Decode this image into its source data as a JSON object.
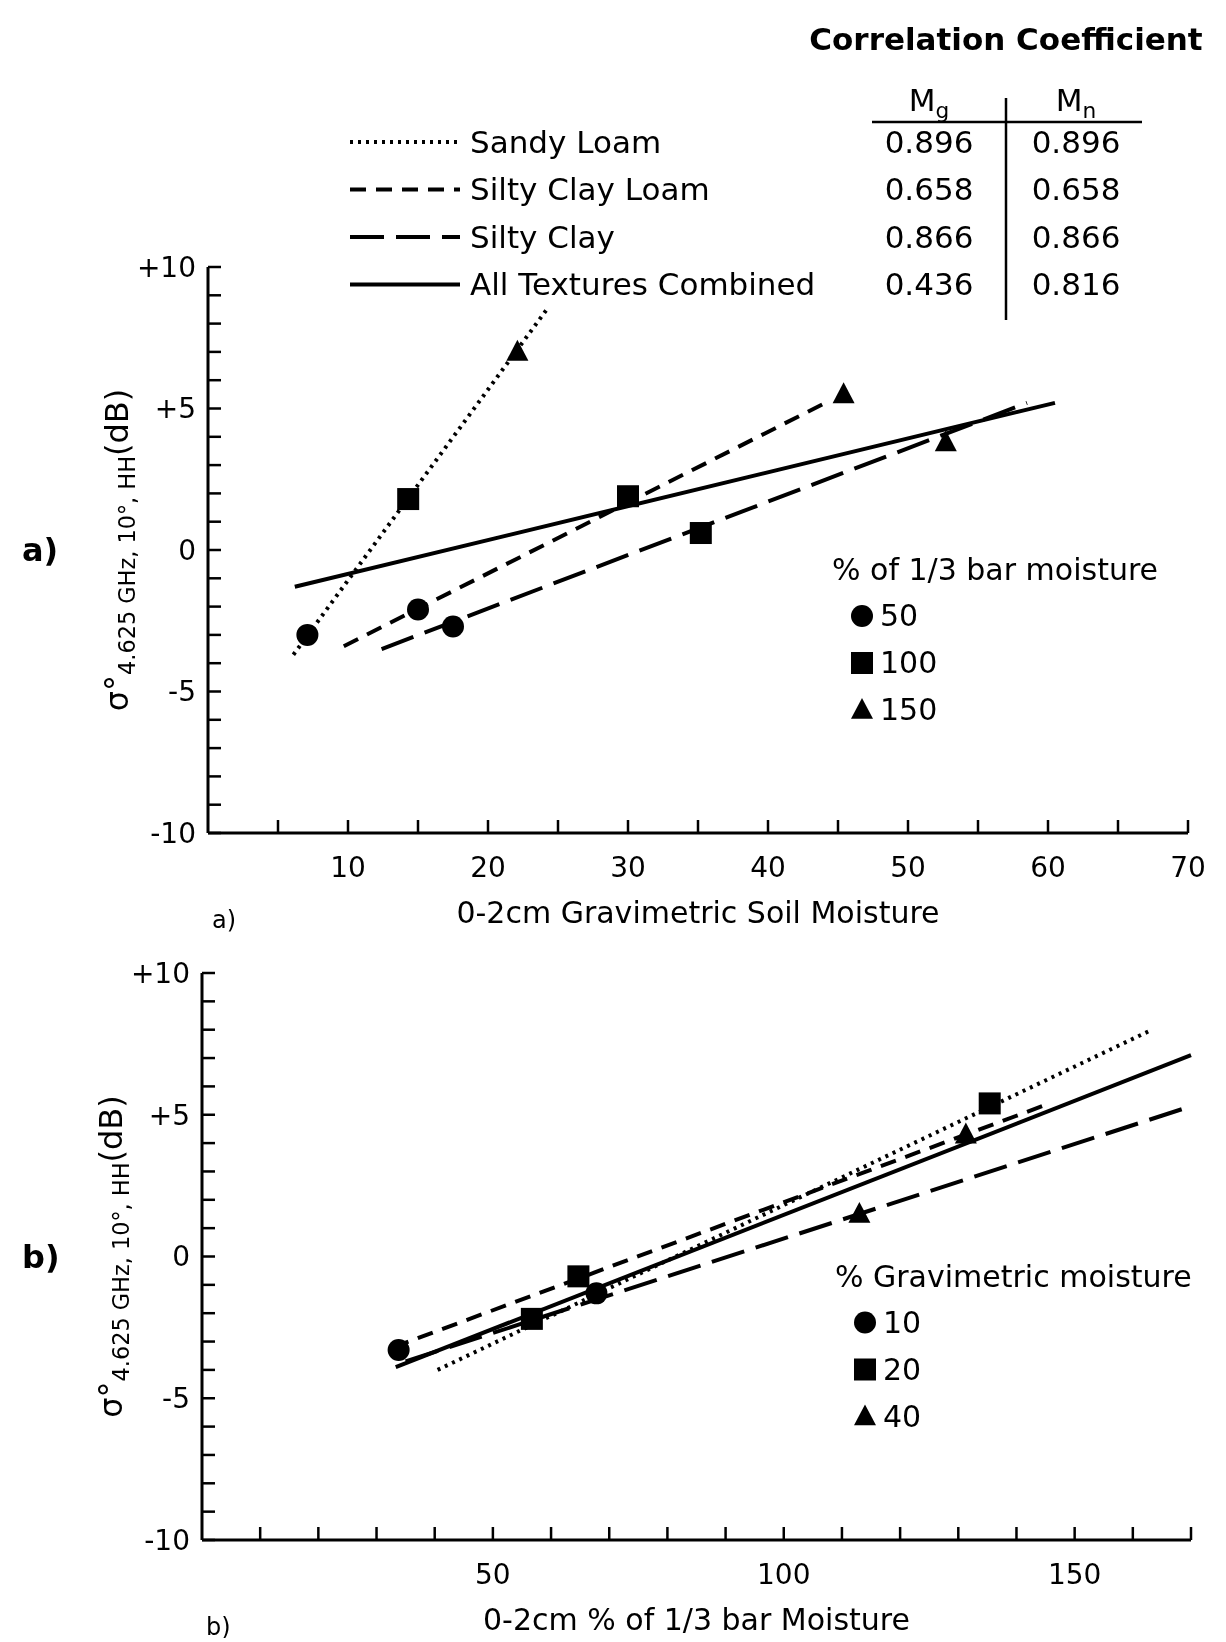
{
  "chart_data": [
    {
      "type": "scatter",
      "xlabel": "0-2cm Gravimetric Soil Moisture",
      "ylabel": "σ°$_{4.625 GHz, 10°, HH}$(dB)",
      "legend_title": "% of 1/3 bar moisture",
      "legend": "top",
      "xlim": [
        0,
        70
      ],
      "ylim": [
        -10,
        10
      ],
      "xticks": [
        {
          "value": 5,
          "label": null
        },
        10,
        {
          "value": 15,
          "label": null
        },
        20,
        {
          "value": 25,
          "label": null
        },
        30,
        {
          "value": 35,
          "label": null
        },
        40,
        {
          "value": 45,
          "label": null
        },
        50,
        {
          "value": 55,
          "label": null
        },
        60,
        {
          "value": 65,
          "label": null
        },
        70
      ],
      "yticks": [
        -10,
        {
          "value": -9,
          "label": null
        },
        {
          "value": -8,
          "label": null
        },
        {
          "value": -7,
          "label": null
        },
        {
          "value": -6,
          "label": null
        },
        -5,
        {
          "value": -4,
          "label": null
        },
        {
          "value": -3,
          "label": null
        },
        {
          "value": -2,
          "label": null
        },
        {
          "value": -1,
          "label": null
        },
        0,
        {
          "value": 1,
          "label": null
        },
        {
          "value": 2,
          "label": null
        },
        {
          "value": 3,
          "label": null
        },
        {
          "value": 4,
          "label": null
        },
        {
          "value": 5,
          "label": "+5"
        },
        {
          "value": 6,
          "label": null
        },
        {
          "value": 7,
          "label": null
        },
        {
          "value": 8,
          "label": null
        },
        {
          "value": 9,
          "label": null
        },
        {
          "value": 10,
          "label": "+10"
        }
      ],
      "series": [
        {
          "type": "line",
          "name": "Sandy Loam",
          "color": "#000000",
          "line_style": "dotted",
          "x": [
            6.1,
            24.2
          ],
          "values": [
            -3.7,
            8.5
          ]
        },
        {
          "type": "line",
          "name": "Silty Clay Loam",
          "color": "#000000",
          "line_style": "dashed",
          "x": [
            9.7,
            44.1
          ],
          "values": [
            -3.4,
            5.2
          ]
        },
        {
          "type": "line",
          "name": "Silty Clay",
          "color": "#000000",
          "line_style": "longdash",
          "x": [
            12.4,
            58.5
          ],
          "values": [
            -3.5,
            5.2
          ]
        },
        {
          "type": "line",
          "name": "All Textures Combined",
          "color": "#000000",
          "line_style": "solid",
          "x": [
            6.2,
            60.5
          ],
          "values": [
            -1.3,
            5.2
          ]
        },
        {
          "type": "scatter",
          "name": "50",
          "color": "#000000",
          "marker": "circle",
          "x": [
            7.1,
            15,
            17.5
          ],
          "values": [
            -3,
            -2.1,
            -2.7
          ]
        },
        {
          "type": "scatter",
          "name": "100",
          "color": "#000000",
          "marker": "square",
          "x": [
            14.3,
            30,
            35.2
          ],
          "values": [
            1.8,
            1.9,
            0.6
          ]
        },
        {
          "type": "scatter",
          "name": "150",
          "color": "#000000",
          "marker": "triangle",
          "x": [
            22.1,
            45.4,
            52.7
          ],
          "values": [
            7,
            5.5,
            3.8
          ]
        }
      ],
      "annotations": [
        "Correlation Coefficient",
        "M$_{g}$",
        "M$_{n}$",
        "0.896",
        "0.896",
        "0.658",
        "0.658",
        "0.866",
        "0.866",
        "0.436",
        "0.816",
        "a)",
        "a)"
      ]
    },
    {
      "type": "scatter",
      "xlabel": "0-2cm % of 1/3 bar Moisture",
      "ylabel": "σ°$_{4.625 GHz, 10°, HH}$(dB)",
      "legend_title": "% Gravimetric moisture",
      "legend": "right",
      "xlim": [
        0,
        170
      ],
      "ylim": [
        -10,
        10
      ],
      "xticks": [
        {
          "value": 10,
          "label": null
        },
        {
          "value": 20,
          "label": null
        },
        {
          "value": 30,
          "label": null
        },
        {
          "value": 40,
          "label": null
        },
        50,
        {
          "value": 60,
          "label": null
        },
        {
          "value": 70,
          "label": null
        },
        {
          "value": 80,
          "label": null
        },
        {
          "value": 90,
          "label": null
        },
        100,
        {
          "value": 110,
          "label": null
        },
        {
          "value": 120,
          "label": null
        },
        {
          "value": 130,
          "label": null
        },
        {
          "value": 140,
          "label": null
        },
        150,
        {
          "value": 160,
          "label": null
        },
        {
          "value": 170,
          "label": null
        }
      ],
      "yticks": [
        -10,
        {
          "value": -9,
          "label": null
        },
        {
          "value": -8,
          "label": null
        },
        {
          "value": -7,
          "label": null
        },
        {
          "value": -6,
          "label": null
        },
        -5,
        {
          "value": -4,
          "label": null
        },
        {
          "value": -3,
          "label": null
        },
        {
          "value": -2,
          "label": null
        },
        {
          "value": -1,
          "label": null
        },
        0,
        {
          "value": 1,
          "label": null
        },
        {
          "value": 2,
          "label": null
        },
        {
          "value": 3,
          "label": null
        },
        {
          "value": 4,
          "label": null
        },
        {
          "value": 5,
          "label": "+5"
        },
        {
          "value": 6,
          "label": null
        },
        {
          "value": 7,
          "label": null
        },
        {
          "value": 8,
          "label": null
        },
        {
          "value": 9,
          "label": null
        },
        {
          "value": 10,
          "label": "+10"
        }
      ],
      "series": [
        {
          "type": "line",
          "color": "#000000",
          "line_style": "dotted",
          "x": [
            40.5,
            163.3
          ],
          "values": [
            -4,
            8
          ]
        },
        {
          "type": "line",
          "color": "#000000",
          "line_style": "dashed",
          "x": [
            32.9,
            145.7
          ],
          "values": [
            -3.2,
            5.4
          ]
        },
        {
          "type": "line",
          "color": "#000000",
          "line_style": "longdash",
          "x": [
            35,
            170
          ],
          "values": [
            -3.7,
            5.3
          ]
        },
        {
          "type": "line",
          "color": "#000000",
          "line_style": "solid",
          "x": [
            33.3,
            170
          ],
          "values": [
            -3.9,
            7.1
          ]
        },
        {
          "type": "scatter",
          "name": "10",
          "color": "#000000",
          "marker": "circle",
          "x": [
            33.8,
            67.8
          ],
          "values": [
            -3.3,
            -1.3
          ]
        },
        {
          "type": "scatter",
          "name": "20",
          "color": "#000000",
          "marker": "square",
          "x": [
            56.7,
            64.7,
            135.4
          ],
          "values": [
            -2.2,
            -0.7,
            5.4
          ]
        },
        {
          "type": "scatter",
          "name": "40",
          "color": "#000000",
          "marker": "triangle",
          "x": [
            113,
            131.3
          ],
          "values": [
            1.5,
            4.3
          ]
        }
      ],
      "annotations": [
        "b)",
        "b)"
      ]
    }
  ]
}
